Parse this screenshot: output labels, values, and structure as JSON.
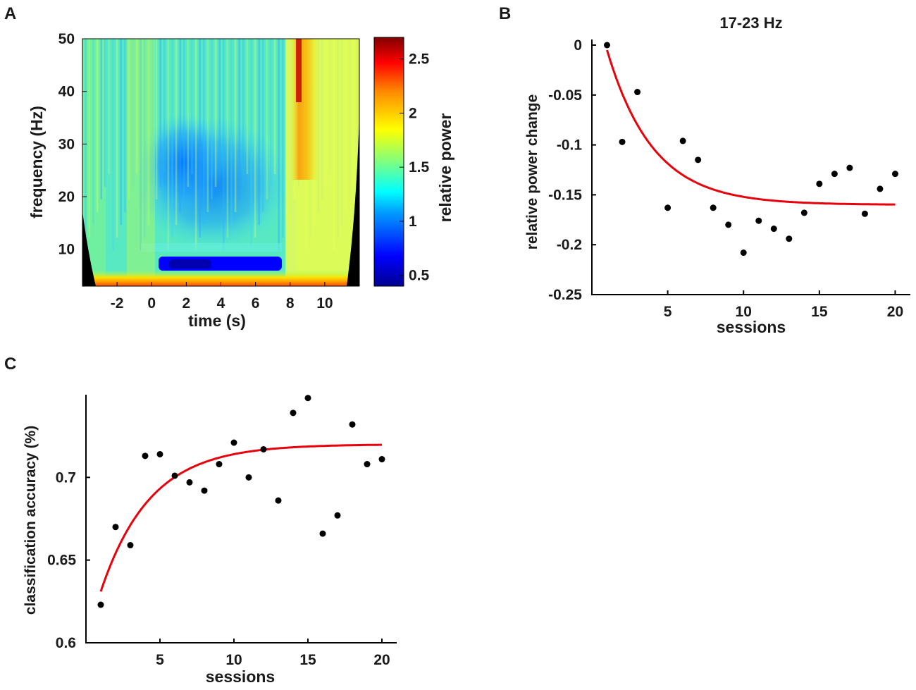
{
  "chart_data": [
    {
      "panel": "A",
      "type": "heatmap",
      "title": "",
      "xlabel": "time (s)",
      "ylabel": "frequency (Hz)",
      "xlim": [
        -4,
        12
      ],
      "ylim": [
        3,
        50
      ],
      "xticks": [
        "-2",
        "0",
        "2",
        "4",
        "6",
        "8",
        "10"
      ],
      "yticks": [
        "10",
        "20",
        "30",
        "40",
        "50"
      ],
      "colorbar": {
        "label": "relative power",
        "range": [
          0.4,
          2.7
        ],
        "ticks": [
          "0.5",
          "1",
          "1.5",
          "2",
          "2.5"
        ],
        "colormap": [
          "#00008f",
          "#0000ff",
          "#00a0ff",
          "#00ffff",
          "#7fff7f",
          "#ffff00",
          "#ff8c00",
          "#ff0000",
          "#800000"
        ]
      }
    },
    {
      "panel": "B",
      "type": "scatter",
      "title": "17-23 Hz",
      "xlabel": "sessions",
      "ylabel": "relative power change",
      "xlim": [
        0,
        21
      ],
      "ylim": [
        -0.25,
        0
      ],
      "xticks": [
        "5",
        "10",
        "15",
        "20"
      ],
      "yticks": [
        "0",
        "-0.05",
        "-0.1",
        "-0.15",
        "-0.2",
        "-0.25"
      ],
      "series": [
        {
          "name": "sessions",
          "x": [
            1,
            2,
            3,
            4,
            5,
            6,
            7,
            8,
            9,
            10,
            11,
            12,
            13,
            14,
            15,
            16,
            17,
            18,
            19,
            20
          ],
          "y": [
            0,
            -0.097,
            -0.047,
            null,
            -0.163,
            -0.096,
            -0.115,
            -0.163,
            -0.18,
            -0.208,
            -0.176,
            -0.184,
            -0.194,
            -0.168,
            -0.139,
            -0.129,
            -0.123,
            -0.169,
            -0.144,
            -0.129
          ]
        },
        {
          "name": "exponential fit",
          "model": "a + b*exp(-c*(x-1))",
          "params": [
            -0.16,
            0.155,
            0.33
          ],
          "x_range": [
            1,
            20
          ]
        }
      ],
      "fit_color": "#e8000b"
    },
    {
      "panel": "C",
      "type": "scatter",
      "title": "",
      "xlabel": "sessions",
      "ylabel": "classification accuracy (%)",
      "xlim": [
        0,
        21
      ],
      "ylim": [
        0.6,
        0.75
      ],
      "xticks": [
        "5",
        "10",
        "15",
        "20"
      ],
      "yticks": [
        "0.6",
        "0.65",
        "0.7"
      ],
      "series": [
        {
          "name": "sessions",
          "x": [
            1,
            2,
            3,
            4,
            5,
            6,
            7,
            8,
            9,
            10,
            11,
            12,
            13,
            14,
            15,
            16,
            17,
            18,
            19,
            20
          ],
          "y": [
            0.623,
            0.67,
            0.659,
            0.713,
            0.714,
            0.701,
            0.697,
            0.692,
            0.708,
            0.721,
            0.7,
            0.717,
            0.686,
            0.739,
            0.748,
            0.666,
            0.677,
            0.732,
            0.708,
            0.711
          ]
        },
        {
          "name": "exponential fit",
          "model": "a - b*exp(-c*(x-1))",
          "params": [
            0.72,
            0.089,
            0.3
          ],
          "x_range": [
            1,
            20
          ]
        }
      ],
      "fit_color": "#e8000b"
    }
  ],
  "panel_labels": {
    "a": "A",
    "b": "B",
    "c": "C"
  }
}
